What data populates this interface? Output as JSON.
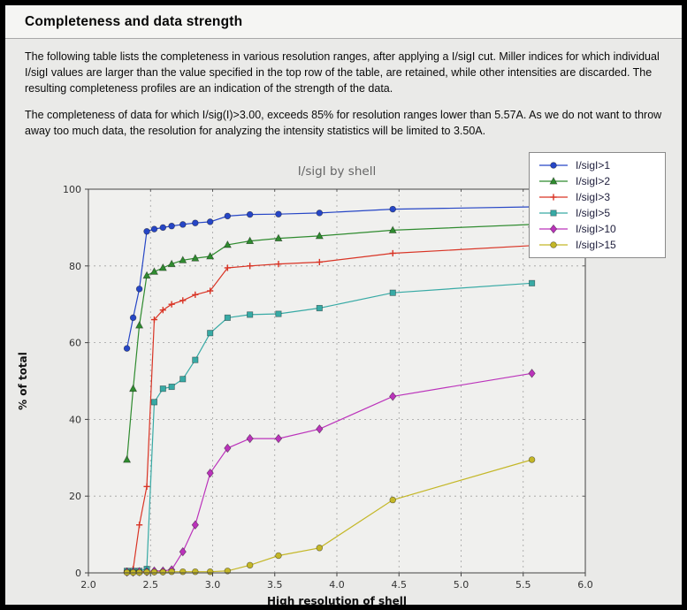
{
  "page": {
    "title": "Completeness and data strength",
    "paragraph1": "The following table lists the completeness in various resolution ranges, after applying a I/sigI cut. Miller indices for which individual I/sigI values are larger than the value specified in the top row of the table, are retained, while other intensities are discarded. The resulting completeness profiles are an indication of the strength of the data.",
    "paragraph2": "The completeness of data for which I/sig(I)>3.00, exceeds  85% for resolution ranges lower than 5.57A. As we do not want to throw away too much data, the resolution for analyzing the intensity statistics will be limited to 3.50A."
  },
  "colors": {
    "page_bg": "#eaeae8",
    "plot_bg": "#f0f0ee",
    "grid": "#a0a0a0",
    "frame": "#444444",
    "chart_title": "#666666",
    "tick_label": "#333333",
    "axis_label": "#111111"
  },
  "chart_data": {
    "type": "line",
    "title": "I/sigI by shell",
    "xlabel": "High resolution of shell",
    "ylabel": "% of total",
    "xlim": [
      2.0,
      6.0
    ],
    "ylim": [
      0,
      100
    ],
    "xticks": [
      2.0,
      2.5,
      3.0,
      3.5,
      4.0,
      4.5,
      5.0,
      5.5,
      6.0
    ],
    "yticks": [
      0,
      20,
      40,
      60,
      80,
      100
    ],
    "grid": true,
    "legend_position": "top-right",
    "x": [
      2.31,
      2.36,
      2.41,
      2.47,
      2.53,
      2.6,
      2.67,
      2.76,
      2.86,
      2.98,
      3.12,
      3.3,
      3.53,
      3.86,
      4.45,
      5.57
    ],
    "series": [
      {
        "name": "I/sigI>1",
        "color": "#2646c6",
        "marker": "circle",
        "values": [
          58.5,
          66.5,
          74.0,
          89.0,
          89.6,
          90.0,
          90.4,
          90.8,
          91.2,
          91.5,
          93.0,
          93.4,
          93.5,
          93.8,
          94.8,
          95.4
        ]
      },
      {
        "name": "I/sigI>2",
        "color": "#2f8b2f",
        "marker": "triangle",
        "values": [
          29.5,
          48.0,
          64.5,
          77.5,
          78.5,
          79.5,
          80.5,
          81.5,
          82.0,
          82.5,
          85.5,
          86.5,
          87.2,
          87.8,
          89.3,
          90.8
        ]
      },
      {
        "name": "I/sigI>3",
        "color": "#d93425",
        "marker": "plus",
        "values": [
          0.5,
          1.0,
          12.5,
          22.5,
          66.0,
          68.5,
          70.0,
          71.0,
          72.5,
          73.5,
          79.5,
          80.0,
          80.5,
          81.0,
          83.3,
          85.3
        ]
      },
      {
        "name": "I/sigI>5",
        "color": "#38aaa5",
        "marker": "square",
        "values": [
          0.5,
          0.5,
          0.5,
          1.0,
          44.5,
          48.0,
          48.5,
          50.5,
          55.5,
          62.5,
          66.5,
          67.3,
          67.5,
          69.0,
          73.0,
          75.5
        ]
      },
      {
        "name": "I/sigI>10",
        "color": "#bb33bb",
        "marker": "diamond",
        "values": [
          0.2,
          0.2,
          0.3,
          0.3,
          0.5,
          0.5,
          0.8,
          5.5,
          12.5,
          26.0,
          32.5,
          35.0,
          35.0,
          37.5,
          46.0,
          52.0
        ]
      },
      {
        "name": "I/sigI>15",
        "color": "#c4b727",
        "marker": "circle",
        "values": [
          0.1,
          0.1,
          0.1,
          0.2,
          0.2,
          0.2,
          0.3,
          0.3,
          0.3,
          0.3,
          0.5,
          2.0,
          4.5,
          6.5,
          19.0,
          29.5
        ]
      }
    ]
  }
}
